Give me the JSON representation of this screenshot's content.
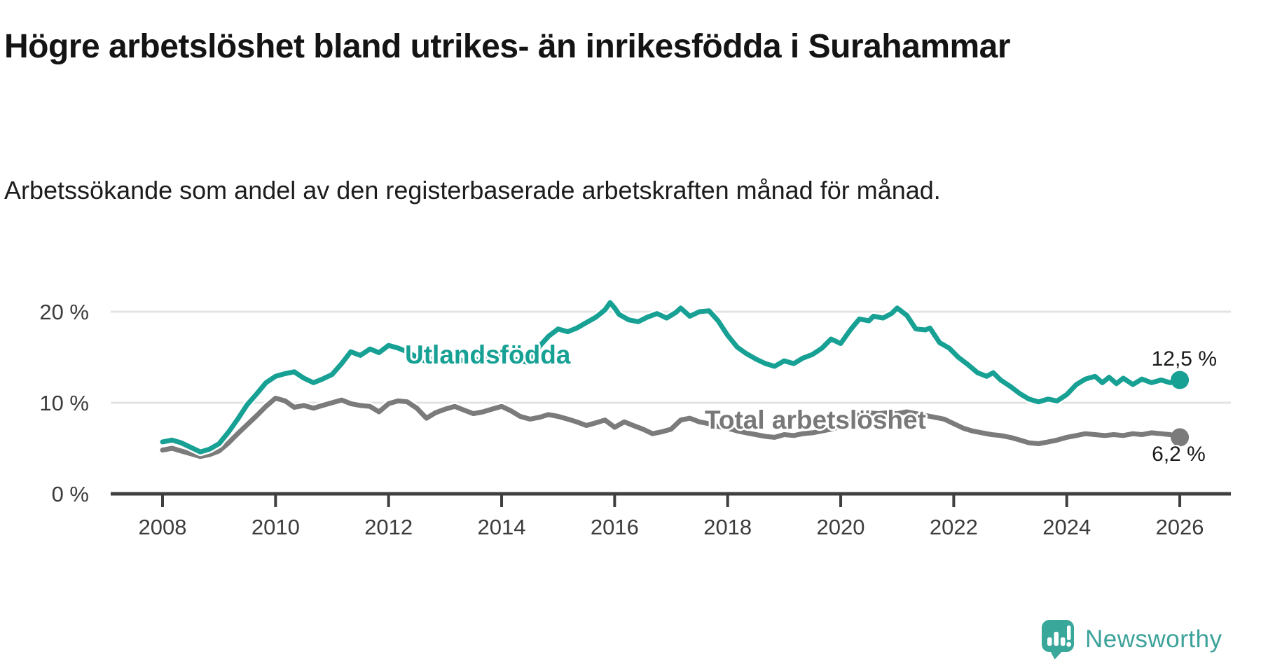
{
  "header": {
    "title": "Högre arbetslöshet bland utrikes- än inrikesfödda i Surahammar",
    "subtitle": "Arbetssökande som andel av den registerbaserade arbetskraften månad för månad."
  },
  "footer": {
    "brand": "Newsworthy",
    "brand_color": "#3da29a",
    "logo_icon": "speech-bubble-bar-chart-exclamation-icon"
  },
  "chart_data": {
    "type": "line",
    "title": "Högre arbetslöshet bland utrikes- än inrikesfödda i Surahammar",
    "subtitle": "Arbetssökande som andel av den registerbaserade arbetskraften månad för månad.",
    "grid": true,
    "legend_position": "inline-labels-on-lines",
    "x_axis": {
      "ticks": [
        2008,
        2010,
        2012,
        2014,
        2016,
        2018,
        2020,
        2022,
        2024,
        2026
      ],
      "range": [
        2008,
        2026
      ]
    },
    "y_axis": {
      "unit": "%",
      "range": [
        0,
        22
      ],
      "gridlines": [
        {
          "value": 20,
          "label": "20 %"
        },
        {
          "value": 10,
          "label": "10 %"
        },
        {
          "value": 0,
          "label": "0 %"
        }
      ]
    },
    "series": [
      {
        "name": "Total arbetslöshet",
        "color": "#7b7b7b",
        "end_label": "6,2 %",
        "end_value": 6.2,
        "points": [
          [
            2008.0,
            4.8
          ],
          [
            2008.17,
            5.0
          ],
          [
            2008.33,
            4.7
          ],
          [
            2008.5,
            4.4
          ],
          [
            2008.67,
            4.1
          ],
          [
            2008.83,
            4.3
          ],
          [
            2009.0,
            4.7
          ],
          [
            2009.17,
            5.6
          ],
          [
            2009.33,
            6.6
          ],
          [
            2009.5,
            7.6
          ],
          [
            2009.67,
            8.6
          ],
          [
            2009.83,
            9.6
          ],
          [
            2010.0,
            10.5
          ],
          [
            2010.17,
            10.2
          ],
          [
            2010.33,
            9.5
          ],
          [
            2010.5,
            9.7
          ],
          [
            2010.67,
            9.4
          ],
          [
            2010.83,
            9.7
          ],
          [
            2011.0,
            10.0
          ],
          [
            2011.17,
            10.3
          ],
          [
            2011.33,
            9.9
          ],
          [
            2011.5,
            9.7
          ],
          [
            2011.67,
            9.6
          ],
          [
            2011.83,
            9.0
          ],
          [
            2012.0,
            9.9
          ],
          [
            2012.17,
            10.2
          ],
          [
            2012.33,
            10.1
          ],
          [
            2012.5,
            9.4
          ],
          [
            2012.67,
            8.3
          ],
          [
            2012.83,
            8.9
          ],
          [
            2013.0,
            9.3
          ],
          [
            2013.17,
            9.6
          ],
          [
            2013.33,
            9.2
          ],
          [
            2013.5,
            8.8
          ],
          [
            2013.67,
            9.0
          ],
          [
            2013.83,
            9.3
          ],
          [
            2014.0,
            9.6
          ],
          [
            2014.17,
            9.1
          ],
          [
            2014.33,
            8.5
          ],
          [
            2014.5,
            8.2
          ],
          [
            2014.67,
            8.4
          ],
          [
            2014.83,
            8.7
          ],
          [
            2015.0,
            8.5
          ],
          [
            2015.17,
            8.2
          ],
          [
            2015.33,
            7.9
          ],
          [
            2015.5,
            7.5
          ],
          [
            2015.67,
            7.8
          ],
          [
            2015.83,
            8.1
          ],
          [
            2016.0,
            7.3
          ],
          [
            2016.17,
            7.9
          ],
          [
            2016.33,
            7.5
          ],
          [
            2016.5,
            7.1
          ],
          [
            2016.67,
            6.6
          ],
          [
            2016.83,
            6.8
          ],
          [
            2017.0,
            7.1
          ],
          [
            2017.17,
            8.1
          ],
          [
            2017.33,
            8.3
          ],
          [
            2017.5,
            7.9
          ],
          [
            2017.67,
            7.7
          ],
          [
            2017.83,
            7.4
          ],
          [
            2018.0,
            7.2
          ],
          [
            2018.17,
            6.9
          ],
          [
            2018.33,
            6.7
          ],
          [
            2018.5,
            6.5
          ],
          [
            2018.67,
            6.3
          ],
          [
            2018.83,
            6.2
          ],
          [
            2019.0,
            6.5
          ],
          [
            2019.17,
            6.4
          ],
          [
            2019.33,
            6.6
          ],
          [
            2019.5,
            6.7
          ],
          [
            2019.67,
            6.9
          ],
          [
            2019.83,
            7.1
          ],
          [
            2020.0,
            7.4
          ],
          [
            2020.17,
            8.1
          ],
          [
            2020.33,
            8.7
          ],
          [
            2020.5,
            8.9
          ],
          [
            2020.67,
            8.8
          ],
          [
            2020.83,
            8.9
          ],
          [
            2021.0,
            8.8
          ],
          [
            2021.17,
            9.0
          ],
          [
            2021.33,
            8.8
          ],
          [
            2021.5,
            8.6
          ],
          [
            2021.67,
            8.4
          ],
          [
            2021.83,
            8.2
          ],
          [
            2022.0,
            7.7
          ],
          [
            2022.17,
            7.2
          ],
          [
            2022.33,
            6.9
          ],
          [
            2022.5,
            6.7
          ],
          [
            2022.67,
            6.5
          ],
          [
            2022.83,
            6.4
          ],
          [
            2023.0,
            6.2
          ],
          [
            2023.17,
            5.9
          ],
          [
            2023.33,
            5.6
          ],
          [
            2023.5,
            5.5
          ],
          [
            2023.67,
            5.7
          ],
          [
            2023.83,
            5.9
          ],
          [
            2024.0,
            6.2
          ],
          [
            2024.17,
            6.4
          ],
          [
            2024.33,
            6.6
          ],
          [
            2024.5,
            6.5
          ],
          [
            2024.67,
            6.4
          ],
          [
            2024.83,
            6.5
          ],
          [
            2025.0,
            6.4
          ],
          [
            2025.17,
            6.6
          ],
          [
            2025.33,
            6.5
          ],
          [
            2025.5,
            6.7
          ],
          [
            2025.67,
            6.6
          ],
          [
            2025.83,
            6.5
          ],
          [
            2026.0,
            6.2
          ]
        ]
      },
      {
        "name": "Utlandsfödda",
        "color": "#17a094",
        "end_label": "12,5 %",
        "end_value": 12.5,
        "points": [
          [
            2008.0,
            5.7
          ],
          [
            2008.17,
            5.9
          ],
          [
            2008.33,
            5.6
          ],
          [
            2008.5,
            5.1
          ],
          [
            2008.67,
            4.6
          ],
          [
            2008.83,
            4.9
          ],
          [
            2009.0,
            5.5
          ],
          [
            2009.17,
            6.8
          ],
          [
            2009.33,
            8.2
          ],
          [
            2009.5,
            9.8
          ],
          [
            2009.67,
            11.0
          ],
          [
            2009.83,
            12.2
          ],
          [
            2010.0,
            12.9
          ],
          [
            2010.17,
            13.2
          ],
          [
            2010.33,
            13.4
          ],
          [
            2010.5,
            12.7
          ],
          [
            2010.67,
            12.2
          ],
          [
            2010.83,
            12.6
          ],
          [
            2011.0,
            13.1
          ],
          [
            2011.17,
            14.3
          ],
          [
            2011.33,
            15.6
          ],
          [
            2011.5,
            15.2
          ],
          [
            2011.67,
            15.9
          ],
          [
            2011.83,
            15.5
          ],
          [
            2012.0,
            16.3
          ],
          [
            2012.17,
            16.0
          ],
          [
            2012.33,
            15.6
          ],
          [
            2012.5,
            15.0
          ],
          [
            2012.67,
            14.5
          ],
          [
            2012.83,
            15.0
          ],
          [
            2013.0,
            15.2
          ],
          [
            2013.17,
            14.9
          ],
          [
            2013.33,
            14.6
          ],
          [
            2013.5,
            14.8
          ],
          [
            2013.67,
            14.6
          ],
          [
            2013.83,
            14.9
          ],
          [
            2014.0,
            15.2
          ],
          [
            2014.17,
            14.9
          ],
          [
            2014.33,
            14.6
          ],
          [
            2014.5,
            14.4
          ],
          [
            2014.67,
            16.2
          ],
          [
            2014.83,
            17.3
          ],
          [
            2015.0,
            18.1
          ],
          [
            2015.17,
            17.8
          ],
          [
            2015.33,
            18.2
          ],
          [
            2015.5,
            18.8
          ],
          [
            2015.67,
            19.4
          ],
          [
            2015.83,
            20.2
          ],
          [
            2015.92,
            21.0
          ],
          [
            2016.0,
            20.4
          ],
          [
            2016.08,
            19.7
          ],
          [
            2016.25,
            19.1
          ],
          [
            2016.42,
            18.9
          ],
          [
            2016.58,
            19.4
          ],
          [
            2016.75,
            19.8
          ],
          [
            2016.92,
            19.3
          ],
          [
            2017.08,
            19.9
          ],
          [
            2017.17,
            20.4
          ],
          [
            2017.33,
            19.5
          ],
          [
            2017.5,
            20.0
          ],
          [
            2017.67,
            20.1
          ],
          [
            2017.83,
            19.0
          ],
          [
            2018.0,
            17.4
          ],
          [
            2018.17,
            16.1
          ],
          [
            2018.33,
            15.4
          ],
          [
            2018.5,
            14.8
          ],
          [
            2018.67,
            14.3
          ],
          [
            2018.83,
            14.0
          ],
          [
            2019.0,
            14.6
          ],
          [
            2019.17,
            14.3
          ],
          [
            2019.33,
            14.9
          ],
          [
            2019.5,
            15.3
          ],
          [
            2019.67,
            16.0
          ],
          [
            2019.83,
            17.0
          ],
          [
            2020.0,
            16.5
          ],
          [
            2020.17,
            18.0
          ],
          [
            2020.33,
            19.2
          ],
          [
            2020.5,
            19.0
          ],
          [
            2020.58,
            19.5
          ],
          [
            2020.75,
            19.3
          ],
          [
            2020.9,
            19.8
          ],
          [
            2021.0,
            20.4
          ],
          [
            2021.17,
            19.6
          ],
          [
            2021.33,
            18.1
          ],
          [
            2021.5,
            18.0
          ],
          [
            2021.58,
            18.2
          ],
          [
            2021.75,
            16.6
          ],
          [
            2021.92,
            16.0
          ],
          [
            2022.08,
            15.0
          ],
          [
            2022.25,
            14.2
          ],
          [
            2022.42,
            13.3
          ],
          [
            2022.58,
            12.9
          ],
          [
            2022.7,
            13.3
          ],
          [
            2022.83,
            12.5
          ],
          [
            2023.0,
            11.8
          ],
          [
            2023.17,
            11.0
          ],
          [
            2023.33,
            10.4
          ],
          [
            2023.5,
            10.1
          ],
          [
            2023.67,
            10.4
          ],
          [
            2023.83,
            10.2
          ],
          [
            2024.0,
            10.9
          ],
          [
            2024.17,
            12.0
          ],
          [
            2024.33,
            12.6
          ],
          [
            2024.5,
            12.9
          ],
          [
            2024.63,
            12.2
          ],
          [
            2024.75,
            12.8
          ],
          [
            2024.88,
            12.1
          ],
          [
            2025.0,
            12.7
          ],
          [
            2025.17,
            12.0
          ],
          [
            2025.33,
            12.6
          ],
          [
            2025.5,
            12.2
          ],
          [
            2025.67,
            12.5
          ],
          [
            2025.83,
            12.2
          ],
          [
            2026.0,
            12.5
          ]
        ]
      }
    ]
  },
  "style": {
    "gridline_color": "#e3e3e3",
    "axis_color": "#3f3f3f",
    "tick_label_color": "#3c3c3c"
  }
}
